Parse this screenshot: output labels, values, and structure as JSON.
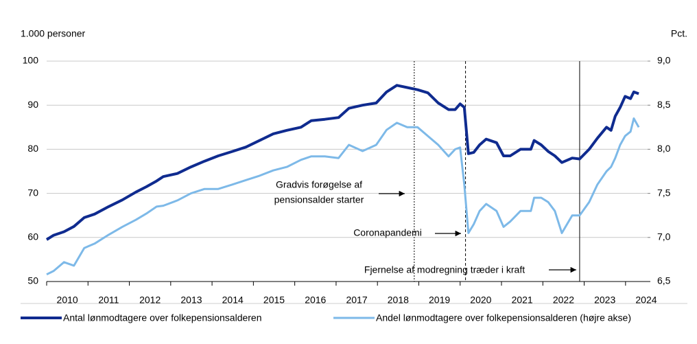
{
  "chart_data": {
    "type": "line",
    "y_label": "1.000 personer",
    "y2_label": "Pct.",
    "x": [
      2010.0,
      2010.17,
      2010.42,
      2010.66,
      2010.91,
      2011.16,
      2011.5,
      2011.83,
      2012.16,
      2012.41,
      2012.66,
      2012.82,
      2013.16,
      2013.49,
      2013.82,
      2014.15,
      2014.49,
      2014.82,
      2015.15,
      2015.48,
      2015.81,
      2016.15,
      2016.4,
      2016.73,
      2017.06,
      2017.31,
      2017.64,
      2017.97,
      2018.22,
      2018.47,
      2018.72,
      2018.97,
      2019.22,
      2019.47,
      2019.72,
      2019.88,
      2020.0,
      2020.1,
      2020.2,
      2020.33,
      2020.47,
      2020.63,
      2020.88,
      2021.05,
      2021.21,
      2021.46,
      2021.71,
      2021.79,
      2021.96,
      2022.13,
      2022.29,
      2022.46,
      2022.71,
      2022.89,
      2023.12,
      2023.32,
      2023.54,
      2023.65,
      2023.75,
      2023.87,
      2023.99,
      2024.12,
      2024.2,
      2024.32
    ],
    "series": [
      {
        "name": "Antal lønmodtagere over folkepensionsalderen",
        "color": "#0f2b8f",
        "axis": "y",
        "values": [
          59.5,
          60.5,
          61.3,
          62.5,
          64.5,
          65.3,
          67,
          68.5,
          70.3,
          71.5,
          72.8,
          73.8,
          74.5,
          76,
          77.3,
          78.5,
          79.5,
          80.5,
          82,
          83.5,
          84.3,
          85,
          86.5,
          86.8,
          87.2,
          89.3,
          90,
          90.5,
          93,
          94.5,
          94,
          93.5,
          92.8,
          90.5,
          89,
          89,
          90.3,
          89.5,
          79,
          79.3,
          81,
          82.3,
          81.5,
          78.5,
          78.5,
          80,
          80,
          82,
          81,
          79.5,
          78.5,
          77,
          78,
          77.8,
          80,
          82.5,
          85,
          84.3,
          87.5,
          89.5,
          92,
          91.5,
          93,
          92.6
        ]
      },
      {
        "name": "Andel lønmodtagere over folkepensionsalderen (højre akse)",
        "color": "#7db9e8",
        "axis": "y2",
        "values": [
          6.58,
          6.62,
          6.72,
          6.68,
          6.88,
          6.93,
          7.03,
          7.12,
          7.2,
          7.27,
          7.35,
          7.36,
          7.42,
          7.5,
          7.55,
          7.55,
          7.6,
          7.65,
          7.7,
          7.76,
          7.8,
          7.88,
          7.92,
          7.92,
          7.9,
          8.05,
          7.98,
          8.05,
          8.22,
          8.3,
          8.25,
          8.25,
          8.15,
          8.05,
          7.92,
          8.0,
          8.02,
          7.6,
          7.05,
          7.15,
          7.3,
          7.38,
          7.3,
          7.12,
          7.18,
          7.3,
          7.3,
          7.45,
          7.45,
          7.4,
          7.3,
          7.05,
          7.25,
          7.25,
          7.4,
          7.6,
          7.75,
          7.8,
          7.9,
          8.05,
          8.15,
          8.2,
          8.35,
          8.25
        ]
      }
    ],
    "xlim": [
      2010,
      2024.6
    ],
    "xticks": [
      2010,
      2011,
      2012,
      2013,
      2014,
      2015,
      2016,
      2017,
      2018,
      2019,
      2020,
      2021,
      2022,
      2023,
      2024
    ],
    "ylim": [
      50,
      100
    ],
    "yticks": [
      50,
      60,
      70,
      80,
      90,
      100
    ],
    "y2lim": [
      6.5,
      9.0
    ],
    "y2ticks": [
      {
        "value": 6.5,
        "label": "6,5"
      },
      {
        "value": 7.0,
        "label": "7,0"
      },
      {
        "value": 7.5,
        "label": "7,5"
      },
      {
        "value": 8.0,
        "label": "8,0"
      },
      {
        "value": 8.5,
        "label": "8,5"
      },
      {
        "value": 9.0,
        "label": "9,0"
      }
    ],
    "grid": true,
    "reference_lines": [
      {
        "x": 2018.89,
        "style": "dotted"
      },
      {
        "x": 2020.13,
        "style": "dashed"
      },
      {
        "x": 2022.89,
        "style": "solid"
      }
    ],
    "annotations": [
      {
        "lines": [
          "Gradvis forøgelse af",
          "pensionsalder starter"
        ]
      },
      {
        "lines": [
          "Coronapandemi"
        ]
      },
      {
        "lines": [
          "Fjernelse af modregning træder i kraft"
        ]
      }
    ],
    "legend": "bottom"
  }
}
